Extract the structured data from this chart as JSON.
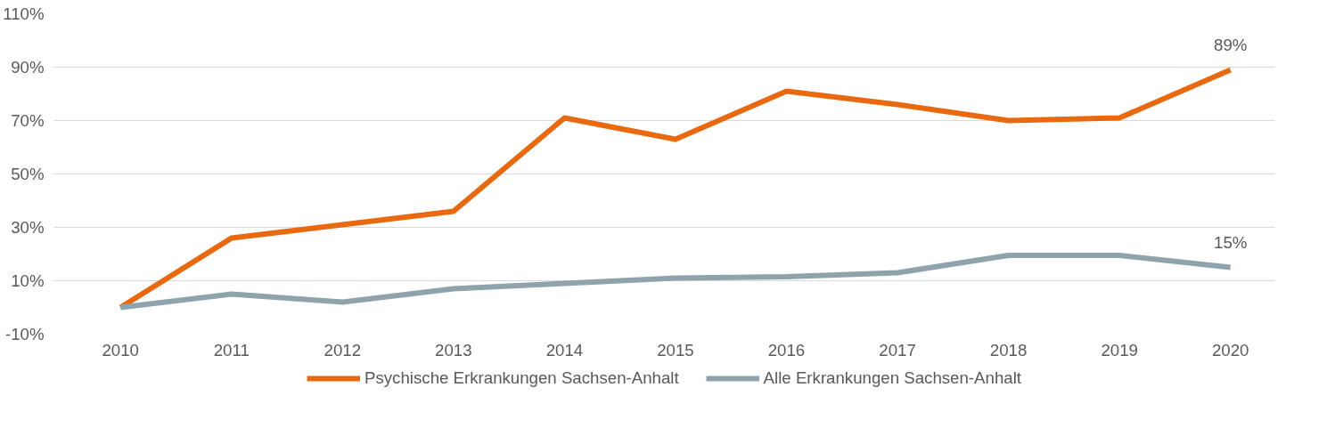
{
  "chart_data": {
    "type": "line",
    "categories": [
      "2010",
      "2011",
      "2012",
      "2013",
      "2014",
      "2015",
      "2016",
      "2017",
      "2018",
      "2019",
      "2020"
    ],
    "series": [
      {
        "name": "Psychische Erkrankungen Sachsen-Anhalt",
        "color": "#e8690f",
        "values": [
          0,
          26,
          31,
          36,
          71,
          63,
          81,
          76,
          70,
          71,
          89
        ],
        "value_labels": [
          null,
          null,
          null,
          null,
          null,
          null,
          null,
          null,
          null,
          null,
          "89%"
        ]
      },
      {
        "name": "Alle Erkrankungen Sachsen-Anhalt",
        "color": "#8fa3ad",
        "values": [
          0,
          5,
          2,
          7,
          9,
          11,
          11.5,
          13,
          19.5,
          19.5,
          15
        ],
        "value_labels": [
          null,
          null,
          null,
          null,
          null,
          null,
          null,
          null,
          null,
          null,
          "15%"
        ]
      }
    ],
    "ylim": [
      -10,
      110
    ],
    "yticks": [
      {
        "value": -10,
        "label": "-10%"
      },
      {
        "value": 10,
        "label": "10%"
      },
      {
        "value": 30,
        "label": "30%"
      },
      {
        "value": 50,
        "label": "50%"
      },
      {
        "value": 70,
        "label": "70%"
      },
      {
        "value": 90,
        "label": "90%"
      },
      {
        "value": 110,
        "label": "110%"
      }
    ],
    "grid": "y",
    "legend": "bottom",
    "marker": "none",
    "line_style": "solid"
  }
}
